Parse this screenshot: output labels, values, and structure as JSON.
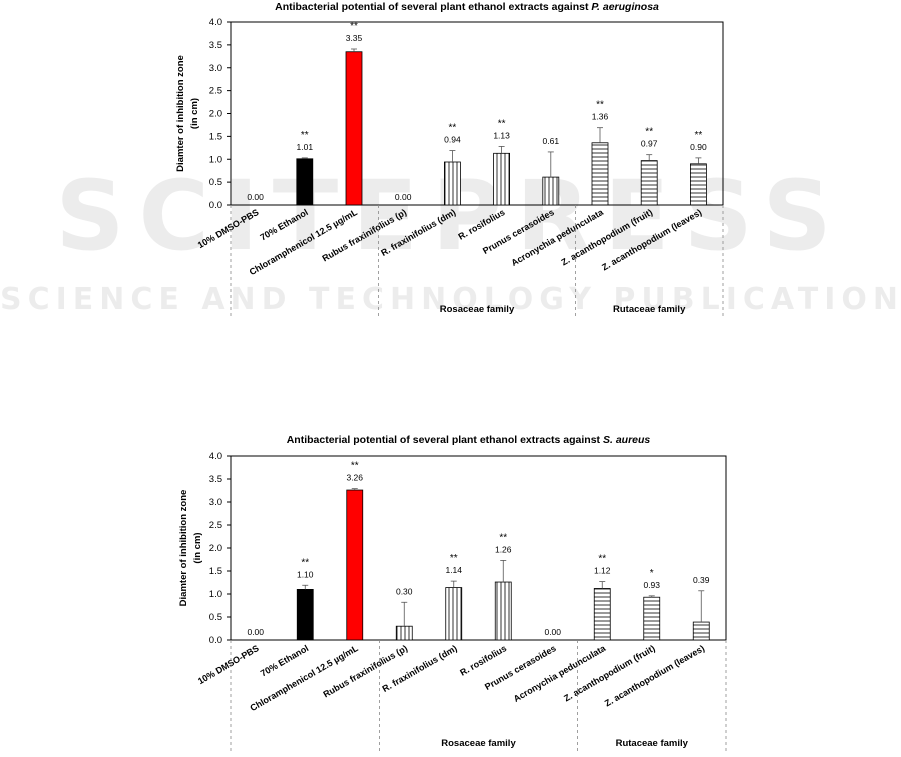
{
  "watermark": {
    "big": "SCITEPRESS",
    "sub": "SCIENCE AND TECHNOLOGY PUBLICATIONS"
  },
  "colors": {
    "control_black": "#000000",
    "chloramphenicol": "#ff0000",
    "hatch": "#333333",
    "axis": "#000000",
    "significance_line": "#b0b0b0"
  },
  "chart_data": [
    {
      "type": "bar",
      "title_prefix": "Antibacterial potential of several plant ethanol extracts against ",
      "title_species": "P. aeruginosa",
      "ylabel_lines": [
        "Diamter of inhibition zone",
        "(in cm)"
      ],
      "ylim": [
        0,
        4.0
      ],
      "yticks": [
        "0.0",
        "0.5",
        "1.0",
        "1.5",
        "2.0",
        "2.5",
        "3.0",
        "3.5",
        "4.0"
      ],
      "grid": false,
      "categories": [
        "10% DMSO-PBS",
        "70% Ethanol",
        "Chloramphenicol 12.5 µg/mL",
        "Rubus fraxinifolius (p)",
        "R. fraxinifolius (dm)",
        "R. rosifolius",
        "Prunus cerasoides",
        "Acronychia pedunculata",
        "Z. acanthopodium (fruit)",
        "Z. acanthopodium (leaves)"
      ],
      "values": [
        0.0,
        1.01,
        3.35,
        0.0,
        0.94,
        1.13,
        0.61,
        1.36,
        0.97,
        0.9
      ],
      "value_labels": [
        "0.00",
        "1.01",
        "3.35",
        "0.00",
        "0.94",
        "1.13",
        "0.61",
        "1.36",
        "0.97",
        "0.90"
      ],
      "error": [
        0,
        0.02,
        0.06,
        0,
        0.25,
        0.15,
        0.55,
        0.33,
        0.13,
        0.13
      ],
      "significance": [
        "",
        "**",
        "**",
        "",
        "**",
        "**",
        "",
        "**",
        "**",
        "**"
      ],
      "fills": [
        "none",
        "black",
        "red",
        "none",
        "vertical",
        "vertical",
        "vertical",
        "horizontal",
        "horizontal",
        "horizontal"
      ],
      "groups": [
        {
          "label": "Rosaceae family",
          "from": 3,
          "to": 6
        },
        {
          "label": "Rutaceae family",
          "from": 7,
          "to": 9
        }
      ]
    },
    {
      "type": "bar",
      "title_prefix": "Antibacterial potential of several plant ethanol extracts against ",
      "title_species": "S. aureus",
      "ylabel_lines": [
        "Diamter of inhibition zone",
        "(in cm)"
      ],
      "ylim": [
        0,
        4.0
      ],
      "yticks": [
        "0.0",
        "0.5",
        "1.0",
        "1.5",
        "2.0",
        "2.5",
        "3.0",
        "3.5",
        "4.0"
      ],
      "grid": false,
      "categories": [
        "10% DMSO-PBS",
        "70% Ethanol",
        "Chloramphenicol 12.5 µg/mL",
        "Rubus fraxinifolius (p)",
        "R. fraxinifolius (dm)",
        "R. rosifolius",
        "Prunus cerasoides",
        "Acronychia pedunculata",
        "Z. acanthopodium (fruit)",
        "Z. acanthopodium (leaves)"
      ],
      "values": [
        0.0,
        1.1,
        3.26,
        0.3,
        1.14,
        1.26,
        0.0,
        1.12,
        0.93,
        0.39
      ],
      "value_labels": [
        "0.00",
        "1.10",
        "3.26",
        "0.30",
        "1.14",
        "1.26",
        "0.00",
        "1.12",
        "0.93",
        "0.39"
      ],
      "error": [
        0,
        0.09,
        0.03,
        0.52,
        0.14,
        0.47,
        0,
        0.15,
        0.03,
        0.68
      ],
      "significance": [
        "",
        "**",
        "**",
        "",
        "**",
        "**",
        "",
        "**",
        "*",
        ""
      ],
      "fills": [
        "none",
        "black",
        "red",
        "vertical",
        "vertical",
        "vertical",
        "none",
        "horizontal",
        "horizontal",
        "horizontal"
      ],
      "groups": [
        {
          "label": "Rosaceae family",
          "from": 3,
          "to": 6
        },
        {
          "label": "Rutaceae family",
          "from": 7,
          "to": 9
        }
      ]
    }
  ]
}
